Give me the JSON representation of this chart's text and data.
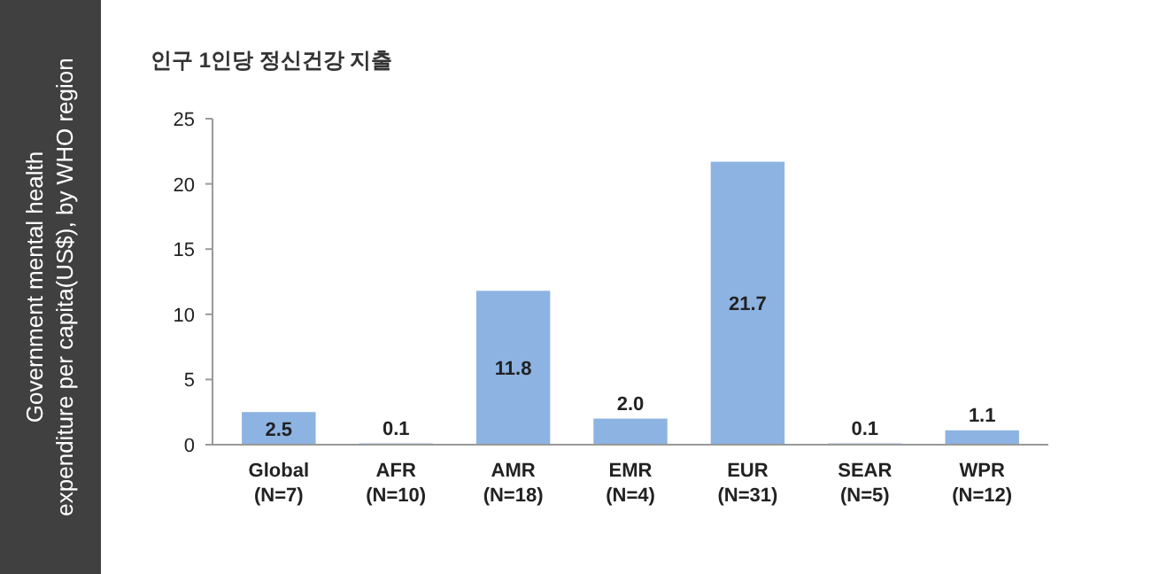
{
  "chart_data": {
    "type": "bar",
    "title": "인구 1인당 정신건강 지출",
    "ylabel": "Government mental health expenditure per capita(US$), by WHO region",
    "categories": [
      "Global\n(N=7)",
      "AFR\n(N=10)",
      "AMR\n(N=18)",
      "EMR\n(N=4)",
      "EUR\n(N=31)",
      "SEAR\n(N=5)",
      "WPR\n(N=12)"
    ],
    "values": [
      2.5,
      0.1,
      11.8,
      2.0,
      21.7,
      0.1,
      1.1
    ],
    "value_labels": [
      "2.5",
      "0.1",
      "11.8",
      "2.0",
      "21.7",
      "0.1",
      "1.1"
    ],
    "color": "#8db3e2",
    "ylim": [
      0,
      25
    ],
    "yticks": [
      0,
      5,
      10,
      15,
      20,
      25
    ],
    "grid": false
  }
}
